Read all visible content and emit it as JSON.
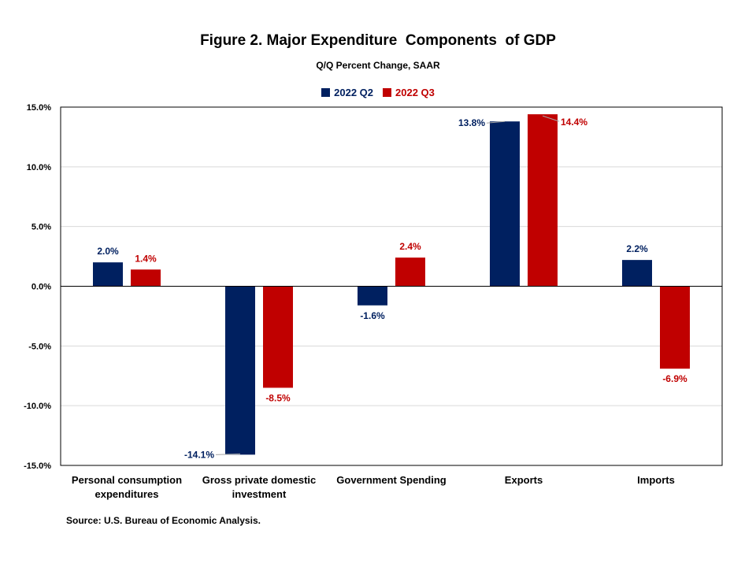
{
  "chart_data": {
    "type": "bar",
    "title": "Figure 2. Major Expenditure  Components  of GDP",
    "subtitle": "Q/Q Percent Change, SAAR",
    "categories": [
      [
        "Personal consumption",
        "expenditures"
      ],
      [
        "Gross private domestic",
        "investment"
      ],
      [
        "Government Spending"
      ],
      [
        "Exports"
      ],
      [
        "Imports"
      ]
    ],
    "series": [
      {
        "name": "2022 Q2",
        "color": "#002060",
        "values": [
          2.0,
          -14.1,
          -1.6,
          13.8,
          2.2
        ],
        "labels": [
          "2.0%",
          "-14.1%",
          "-1.6%",
          "13.8%",
          "2.2%"
        ]
      },
      {
        "name": "2022 Q3",
        "color": "#C00000",
        "values": [
          1.4,
          -8.5,
          2.4,
          14.4,
          -6.9
        ],
        "labels": [
          "1.4%",
          "-8.5%",
          "2.4%",
          "14.4%",
          "-6.9%"
        ]
      }
    ],
    "ylim": [
      -15,
      15
    ],
    "yticks": [
      15,
      10,
      5,
      0,
      -5,
      -10,
      -15
    ],
    "ytick_labels": [
      "15.0%",
      "10.0%",
      "5.0%",
      "0.0%",
      "-5.0%",
      "-10.0%",
      "-15.0%"
    ],
    "grid": true,
    "legend_position": "top-center"
  },
  "source": "Source: U.S. Bureau of Economic Analysis."
}
